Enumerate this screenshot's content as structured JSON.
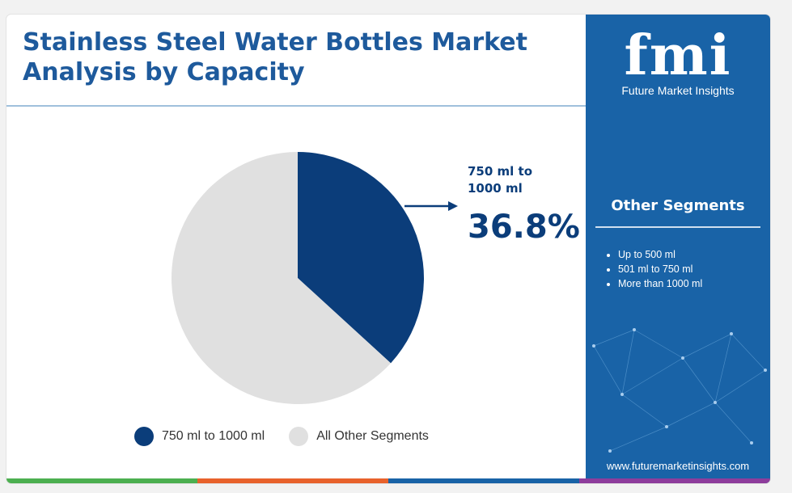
{
  "header": {
    "title": "Stainless Steel Water Bottles Market Analysis by Capacity"
  },
  "callout": {
    "label": "750 ml to 1000 ml",
    "value": "36.8%"
  },
  "sidebar": {
    "brand_name": "Future Market Insights",
    "logo_text": "fmi",
    "other_segments_title": "Other Segments",
    "other_segments": [
      "Up to 500 ml",
      "501 ml to 750 ml",
      "More than 1000 ml"
    ],
    "website": "www.futuremarketinsights.com"
  },
  "colors": {
    "title": "#1e5a9c",
    "highlight_slice": "#0b3d7a",
    "other_slice": "#e0e0e0",
    "sidebar_bg": "#1963a7",
    "bottom_bar": [
      "#4caf50",
      "#e8622c",
      "#1963a7",
      "#8e3d9c"
    ]
  },
  "chart_data": {
    "type": "pie",
    "title": "Stainless Steel Water Bottles Market Analysis by Capacity",
    "slices": [
      {
        "label": "750 ml to 1000 ml",
        "value": 36.8,
        "color": "#0b3d7a"
      },
      {
        "label": "All Other Segments",
        "value": 63.2,
        "color": "#e0e0e0"
      }
    ],
    "legend": [
      "750 ml to 1000 ml",
      "All Other Segments"
    ],
    "legend_position": "bottom"
  }
}
